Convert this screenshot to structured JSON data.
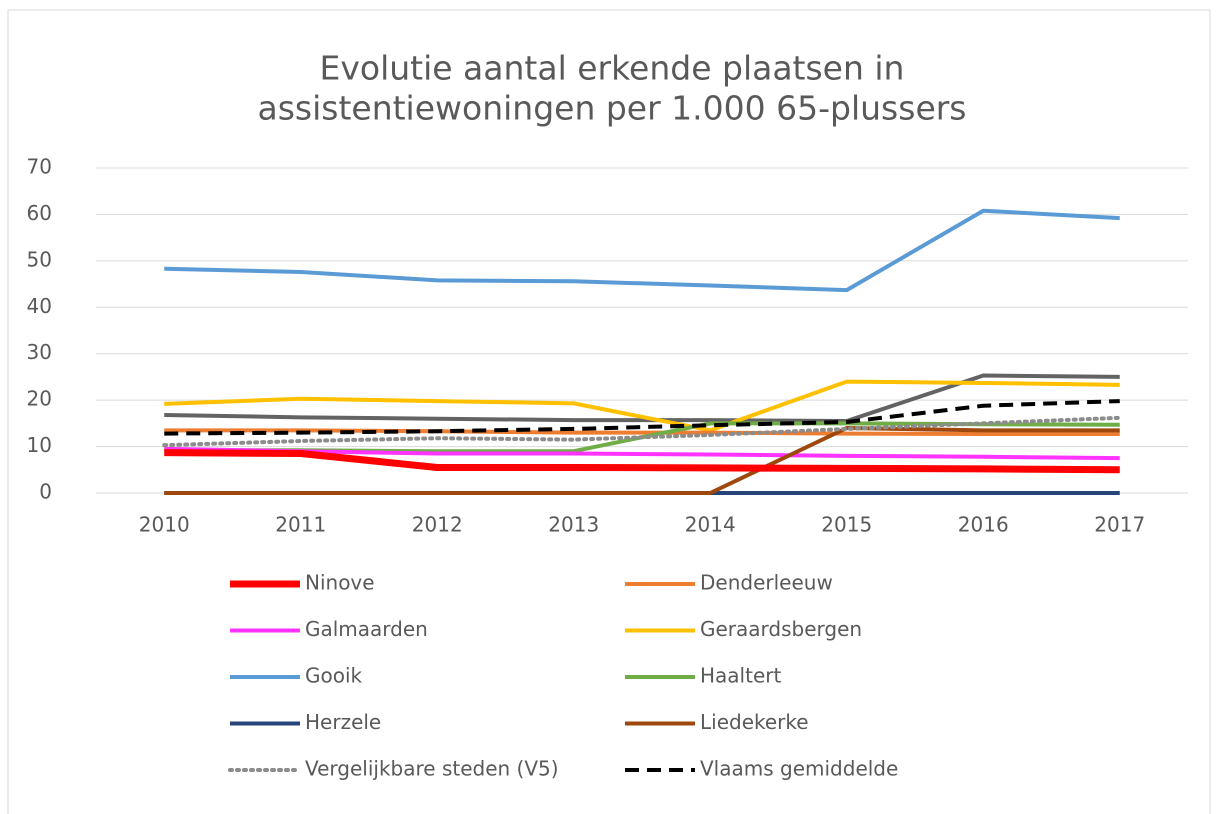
{
  "chart_data": {
    "type": "line",
    "title": [
      "Evolutie aantal erkende plaatsen in",
      "assistentiewoningen per 1.000 65-plussers"
    ],
    "categories": [
      "2010",
      "2011",
      "2012",
      "2013",
      "2014",
      "2015",
      "2016",
      "2017"
    ],
    "ylim": [
      0,
      70
    ],
    "yticks": [
      0,
      10,
      20,
      30,
      40,
      50,
      60,
      70
    ],
    "grid": true,
    "series": [
      {
        "color": "#636363",
        "values": [
          16.8,
          16.3,
          16.0,
          15.7,
          15.7,
          15.5,
          25.3,
          25.0
        ]
      },
      {
        "name": "Gooik",
        "color": "#5b9bd5",
        "values": [
          48.3,
          47.6,
          45.8,
          45.6,
          44.7,
          43.7,
          60.8,
          59.2
        ]
      },
      {
        "name": "Geraardsbergen",
        "color": "#ffc000",
        "values": [
          19.2,
          20.3,
          19.8,
          19.3,
          13.5,
          24.0,
          23.7,
          23.3
        ]
      },
      {
        "name": "Denderleeuw",
        "color": "#ed7d31",
        "values": [
          13.5,
          13.5,
          13.3,
          13.0,
          13.0,
          12.8,
          12.7,
          12.7
        ]
      },
      {
        "name": "Haaltert",
        "color": "#70ad47",
        "values": [
          9.2,
          9.2,
          9.0,
          9.0,
          15.0,
          15.0,
          14.8,
          14.7
        ]
      },
      {
        "name": "Galmaarden",
        "color": "#ff33ff",
        "values": [
          9.5,
          9.0,
          8.5,
          8.5,
          8.3,
          8.0,
          7.8,
          7.5
        ]
      },
      {
        "name": "Herzele",
        "color": "#264478",
        "values": [
          0,
          0,
          0,
          0,
          0,
          0,
          0,
          0
        ]
      },
      {
        "name": "Liedekerke",
        "color": "#9e480e",
        "values": [
          0,
          0,
          0,
          0,
          0,
          14.0,
          13.5,
          13.5
        ]
      },
      {
        "name": "Vergelijkbare steden (V5)",
        "color": "#8c8c8c",
        "dash": "dotted",
        "values": [
          10.3,
          11.2,
          11.8,
          11.5,
          12.5,
          13.8,
          15.0,
          16.2
        ]
      },
      {
        "name": "Vlaams gemiddelde",
        "color": "#000000",
        "dash": "dashed",
        "values": [
          12.8,
          13.0,
          13.3,
          13.8,
          14.6,
          15.3,
          18.8,
          19.8
        ]
      },
      {
        "name": "Ninove",
        "color": "#ff0000",
        "thick": true,
        "values": [
          8.7,
          8.5,
          5.5,
          5.5,
          5.4,
          5.3,
          5.2,
          5.0
        ]
      }
    ],
    "legend_order": [
      "Ninove",
      "Denderleeuw",
      "Galmaarden",
      "Geraardsbergen",
      "Gooik",
      "Haaltert",
      "Herzele",
      "Liedekerke",
      "Vergelijkbare steden (V5)",
      "Vlaams gemiddelde"
    ]
  }
}
